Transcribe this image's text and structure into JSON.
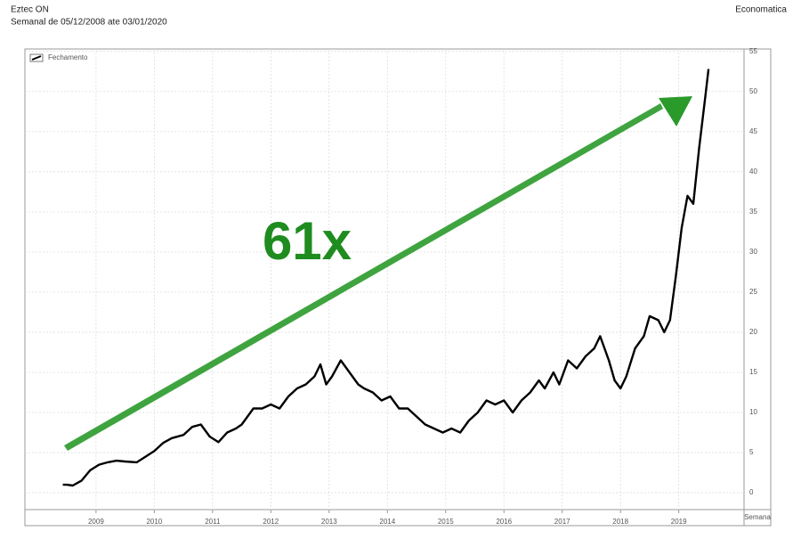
{
  "chart_data": {
    "type": "line",
    "title": "Eztec ON",
    "subtitle": "Semanal de 05/12/2008 ate 03/01/2020",
    "source": "Economatica",
    "x_label": "Semana",
    "annotation": "61x",
    "x": [
      2008.93,
      2009.0,
      2009.1,
      2009.25,
      2009.4,
      2009.55,
      2009.7,
      2009.85,
      2010.0,
      2010.2,
      2010.35,
      2010.5,
      2010.65,
      2010.8,
      2011.0,
      2011.15,
      2011.3,
      2011.45,
      2011.6,
      2011.75,
      2011.9,
      2012.0,
      2012.2,
      2012.35,
      2012.5,
      2012.65,
      2012.8,
      2012.95,
      2013.1,
      2013.25,
      2013.35,
      2013.45,
      2013.55,
      2013.7,
      2013.85,
      2014.0,
      2014.1,
      2014.25,
      2014.4,
      2014.55,
      2014.7,
      2014.85,
      2015.0,
      2015.15,
      2015.3,
      2015.45,
      2015.6,
      2015.75,
      2015.9,
      2016.05,
      2016.2,
      2016.35,
      2016.5,
      2016.65,
      2016.8,
      2016.95,
      2017.1,
      2017.2,
      2017.35,
      2017.45,
      2017.6,
      2017.75,
      2017.9,
      2018.05,
      2018.15,
      2018.3,
      2018.4,
      2018.5,
      2018.6,
      2018.75,
      2018.9,
      2019.0,
      2019.15,
      2019.25,
      2019.35,
      2019.45,
      2019.55,
      2019.65,
      2019.75,
      2019.85,
      2019.95,
      2020.01
    ],
    "series": [
      {
        "name": "Fechamento",
        "color": "#000000",
        "values": [
          1.0,
          1.0,
          0.9,
          1.5,
          2.8,
          3.5,
          3.8,
          4.0,
          3.9,
          3.8,
          4.5,
          5.2,
          6.2,
          6.8,
          7.2,
          8.2,
          8.5,
          7.0,
          6.3,
          7.5,
          8.0,
          8.5,
          10.5,
          10.5,
          11.0,
          10.5,
          12.0,
          13.0,
          13.5,
          14.5,
          16.0,
          13.5,
          14.5,
          16.5,
          15.0,
          13.5,
          13.0,
          12.5,
          11.5,
          12.0,
          10.5,
          10.5,
          9.5,
          8.5,
          8.0,
          7.5,
          8.0,
          7.5,
          9.0,
          10.0,
          11.5,
          11.0,
          11.5,
          10.0,
          11.5,
          12.5,
          14.0,
          13.0,
          15.0,
          13.5,
          16.5,
          15.5,
          17.0,
          18.0,
          19.5,
          16.5,
          14.0,
          13.0,
          14.5,
          18.0,
          19.5,
          22.0,
          21.5,
          20.0,
          21.5,
          27.0,
          33.0,
          37.0,
          36.0,
          43.0,
          49.0,
          52.8
        ]
      }
    ],
    "xlim": [
      2008.28,
      2020.62
    ],
    "xticks": [
      {
        "value": 2009.5,
        "label": "2009"
      },
      {
        "value": 2010.5,
        "label": "2010"
      },
      {
        "value": 2011.5,
        "label": "2011"
      },
      {
        "value": 2012.5,
        "label": "2012"
      },
      {
        "value": 2013.5,
        "label": "2013"
      },
      {
        "value": 2014.5,
        "label": "2014"
      },
      {
        "value": 2015.5,
        "label": "2015"
      },
      {
        "value": 2016.5,
        "label": "2016"
      },
      {
        "value": 2017.5,
        "label": "2017"
      },
      {
        "value": 2018.5,
        "label": "2018"
      },
      {
        "value": 2019.5,
        "label": "2019"
      }
    ],
    "ylim": [
      -2.1,
      55.3
    ],
    "yticks": [
      0,
      5,
      10,
      15,
      20,
      25,
      30,
      35,
      40,
      45,
      50,
      55
    ],
    "grid": true
  }
}
